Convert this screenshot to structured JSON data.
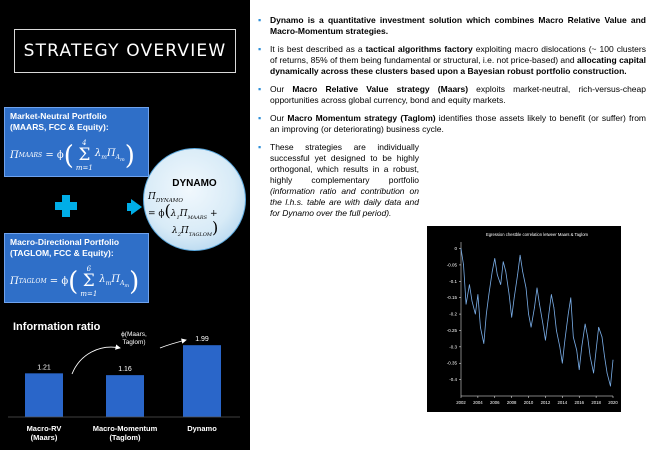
{
  "title": "STRATEGY OVERVIEW",
  "portfolios": {
    "market_neutral": {
      "label_line1": "Market-Neutral Portfolio",
      "label_line2": "(MAARS, FCC & Equity):",
      "lhs": "Π",
      "lhs_sub": "MAARS",
      "sum_top": "4",
      "sum_bottom": "m=1"
    },
    "macro_directional": {
      "label_line1": "Macro-Directional  Portfolio",
      "label_line2": "(TAGLOM, FCC & Equity):",
      "lhs": "Π",
      "lhs_sub": "TAGLOM",
      "sum_top": "6",
      "sum_bottom": "m=1"
    }
  },
  "dynamo": {
    "title": "DYNAMO",
    "lhs_sub": "DYNAMO"
  },
  "colors": {
    "panel_bg": "#000000",
    "box_blue": "#2f6fc8",
    "accent_cyan": "#00aee8",
    "bar_blue": "#2a66c9",
    "bullet_blue": "#2f8fd8",
    "corr_line": "#7aaee8"
  },
  "icons": {
    "plus": "plus-icon",
    "arrow": "arrow-right-icon",
    "bullet": "square-bullet-icon"
  },
  "chart_data": [
    {
      "type": "bar",
      "title": "Information ratio",
      "categories": [
        "Macro-RV (Maars)",
        "Macro-Momentum (Taglom)",
        "Dynamo"
      ],
      "category_lines": [
        [
          "Macro-RV",
          "(Maars)"
        ],
        [
          "Macro-Momentum",
          "(Taglom)"
        ],
        [
          "Dynamo"
        ]
      ],
      "values": [
        1.21,
        1.16,
        1.99
      ],
      "data_labels": [
        "1.21",
        "1.16",
        "1.99"
      ],
      "annotation": "ϕ(Maars, Taglom)",
      "annotation_lines": [
        "ϕ(Maars,",
        "Taglom)"
      ],
      "ylim": [
        0,
        2.3
      ]
    },
    {
      "type": "line",
      "title": "Egression chestble correlation letweer Maars & Taglom",
      "x_ticks": [
        "2002",
        "2004",
        "2006",
        "2008",
        "2010",
        "2012",
        "2014",
        "2016",
        "2018",
        "2020"
      ],
      "y_ticks": [
        "0",
        "-0.05",
        "-0.1",
        "-0.15",
        "-0.2",
        "-0.25",
        "-0.3",
        "-0.35",
        "-0.4"
      ],
      "ylim": [
        -0.45,
        0.02
      ],
      "xlim": [
        2002,
        2020
      ],
      "series": [
        {
          "x": [
            2002.0,
            2002.3,
            2002.6,
            2003.0,
            2003.3,
            2003.7,
            2004.0,
            2004.3,
            2004.7,
            2005.0,
            2005.3,
            2005.7,
            2006.0,
            2006.3,
            2006.7,
            2007.0,
            2007.3,
            2007.7,
            2008.0,
            2008.3,
            2008.7,
            2009.0,
            2009.3,
            2009.7,
            2010.0,
            2010.3,
            2010.7,
            2011.0,
            2011.3,
            2011.7,
            2012.0,
            2012.3,
            2012.7,
            2013.0,
            2013.3,
            2013.7,
            2014.0,
            2014.3,
            2014.7,
            2015.0,
            2015.3,
            2015.7,
            2016.0,
            2016.3,
            2016.7,
            2017.0,
            2017.3,
            2017.7,
            2018.0,
            2018.3,
            2018.7,
            2019.0,
            2019.3,
            2019.7,
            2020.0
          ],
          "y": [
            0.0,
            -0.05,
            -0.17,
            -0.11,
            -0.16,
            -0.2,
            -0.14,
            -0.24,
            -0.29,
            -0.2,
            -0.14,
            -0.07,
            -0.03,
            -0.08,
            -0.11,
            -0.04,
            -0.07,
            -0.14,
            -0.21,
            -0.15,
            -0.08,
            -0.02,
            -0.07,
            -0.12,
            -0.2,
            -0.24,
            -0.18,
            -0.12,
            -0.17,
            -0.23,
            -0.28,
            -0.22,
            -0.14,
            -0.18,
            -0.25,
            -0.3,
            -0.35,
            -0.28,
            -0.2,
            -0.15,
            -0.27,
            -0.31,
            -0.37,
            -0.3,
            -0.23,
            -0.27,
            -0.33,
            -0.38,
            -0.31,
            -0.24,
            -0.27,
            -0.33,
            -0.38,
            -0.42,
            -0.34
          ]
        }
      ]
    }
  ],
  "bullets": [
    {
      "segments": [
        {
          "t": "Dynamo is a quantitative investment solution which combines Macro Relative Value and Macro-Momentum strategies.",
          "b": true
        }
      ]
    },
    {
      "segments": [
        {
          "t": "It is best described as a ",
          "b": false
        },
        {
          "t": "tactical algorithms factory",
          "b": true
        },
        {
          "t": "  exploiting macro dislocations (~ 100 clusters of returns, 85% of them being fundamental or structural, i.e. not price-based) and ",
          "b": false
        },
        {
          "t": "allocating capital dynamically across these clusters based upon a Bayesian robust portfolio construction.",
          "b": true
        }
      ]
    },
    {
      "segments": [
        {
          "t": "Our ",
          "b": false
        },
        {
          "t": "Macro Relative Value strategy (Maars)",
          "b": true
        },
        {
          "t": "  exploits market-neutral, rich-versus-cheap opportunities across global currency, bond and equity markets.",
          "b": false
        }
      ]
    },
    {
      "segments": [
        {
          "t": "Our ",
          "b": false
        },
        {
          "t": "Macro Momentum strategy (Taglom)",
          "b": true
        },
        {
          "t": " identifies those assets likely to benefit (or suffer) from an improving (or deteriorating) business cycle.",
          "b": false
        }
      ]
    },
    {
      "segments": [
        {
          "t": "These strategies are individually successful yet designed to be highly orthogonal, which results in a robust, highly complementary portfolio ",
          "b": false
        },
        {
          "t": "(information ratio and contribution on the l.h.s. table are with daily data and for Dynamo over the full period).",
          "b": false,
          "i": true
        }
      ]
    }
  ]
}
